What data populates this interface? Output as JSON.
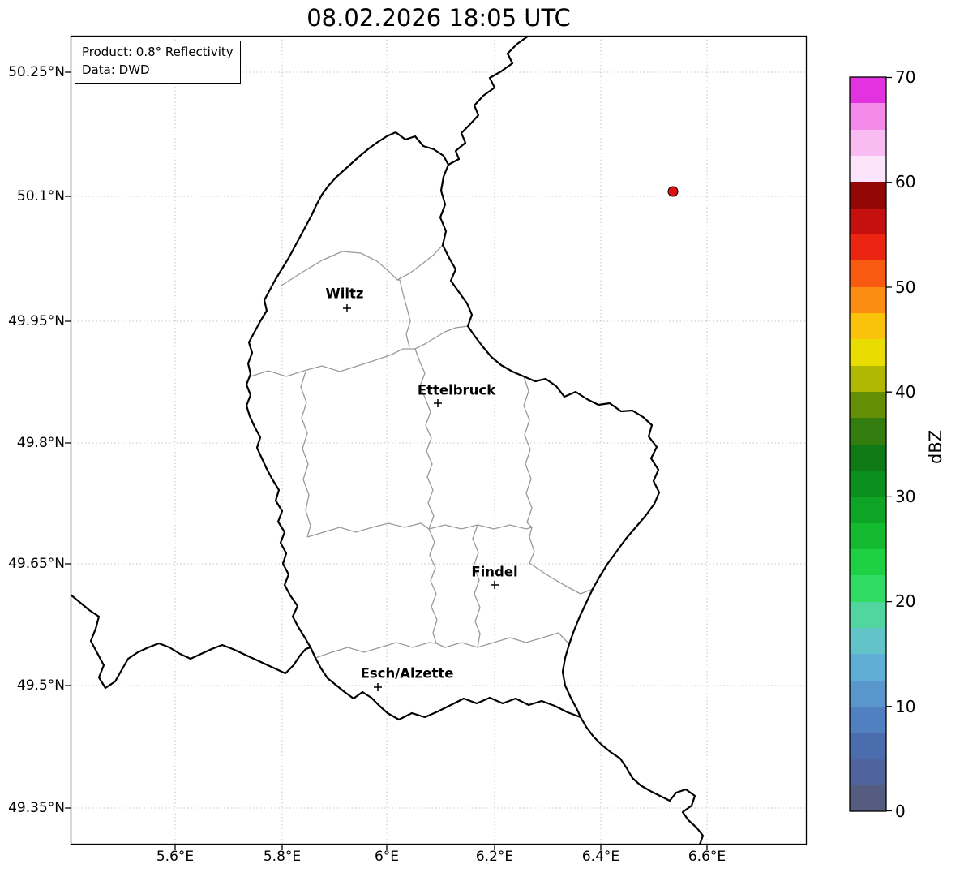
{
  "title": "08.02.2026 18:05 UTC",
  "info_box": {
    "product_line": "Product: 0.8° Reflectivity",
    "data_line": "Data: DWD"
  },
  "axes": {
    "y_ticks": [
      "50.25°N",
      "50.1°N",
      "49.95°N",
      "49.8°N",
      "49.65°N",
      "49.5°N",
      "49.35°N"
    ],
    "x_ticks": [
      "5.6°E",
      "5.8°E",
      "6°E",
      "6.2°E",
      "6.4°E",
      "6.6°E"
    ]
  },
  "cities": [
    {
      "name": "Wiltz"
    },
    {
      "name": "Ettelbruck"
    },
    {
      "name": "Findel"
    },
    {
      "name": "Esch/Alzette"
    }
  ],
  "colorbar": {
    "label": "dBZ",
    "tick_labels": [
      "70",
      "60",
      "50",
      "40",
      "30",
      "20",
      "10",
      "0"
    ],
    "min": 0,
    "max": 70,
    "segment_size_dbz": 2.5,
    "segment_colors_bottom_to_top": [
      "#545c80",
      "#4f639c",
      "#4b6dae",
      "#5080c0",
      "#5896cc",
      "#60aed6",
      "#62c4c8",
      "#50d69e",
      "#30dc64",
      "#1ed044",
      "#14ba30",
      "#0ea426",
      "#0a8e1e",
      "#0d7a16",
      "#327d0e",
      "#648e06",
      "#b0b802",
      "#e8dc00",
      "#fbc20c",
      "#fb8d12",
      "#f95a12",
      "#ec2412",
      "#c60f0f",
      "#940707",
      "#fce4fa",
      "#f9bcf2",
      "#f38ae9",
      "#e332e0"
    ]
  },
  "echo": {
    "color": "#e01010",
    "edge_color": "#000000"
  },
  "map": {
    "country_border_color": "#000000",
    "district_border_color": "#999999",
    "grid_color": "#c4c4c4",
    "background": "#ffffff"
  }
}
